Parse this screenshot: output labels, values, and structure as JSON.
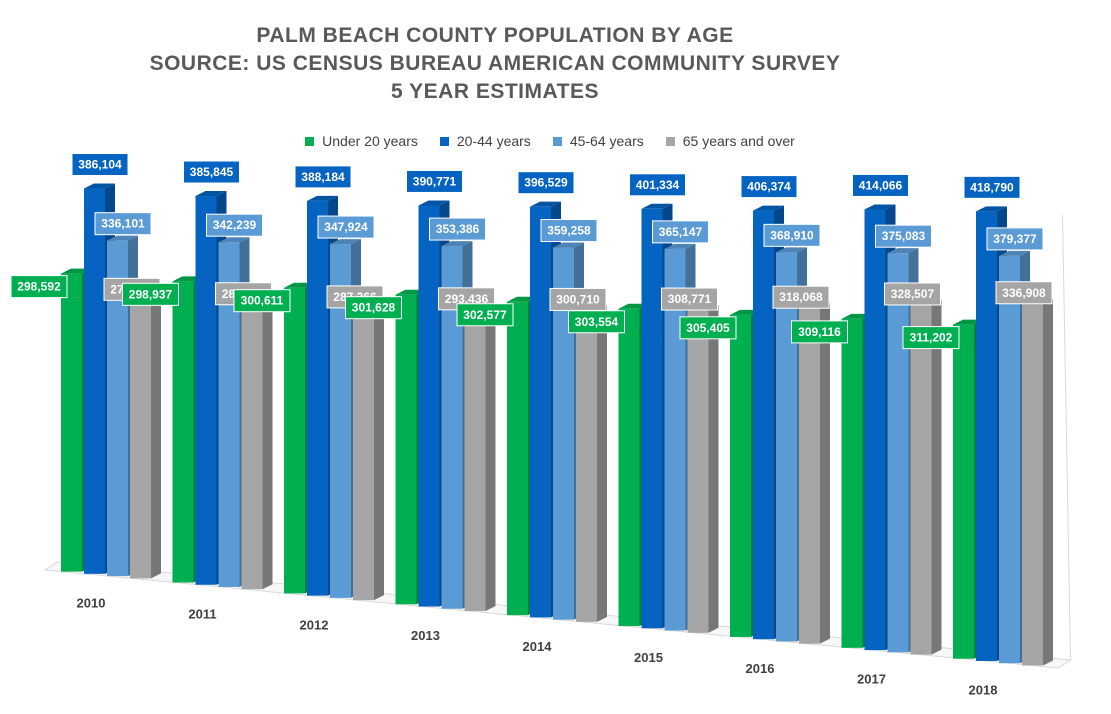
{
  "title": {
    "line1": "PALM BEACH COUNTY POPULATION BY AGE",
    "line2": "SOURCE: US CENSUS BUREAU AMERICAN COMMUNITY SURVEY",
    "line3": "5 YEAR ESTIMATES"
  },
  "colors": {
    "under20": "#00B050",
    "age20_44": "#0563C1",
    "age45_64": "#5B9BD5",
    "age65plus": "#A5A5A5",
    "background": "#FFFFFF"
  },
  "chart_data": {
    "type": "bar",
    "style": "3d-clustered-column",
    "title": "PALM BEACH COUNTY POPULATION BY AGE SOURCE: US CENSUS BUREAU AMERICAN COMMUNITY SURVEY 5 YEAR ESTIMATES",
    "categories": [
      "2010",
      "2011",
      "2012",
      "2013",
      "2014",
      "2015",
      "2016",
      "2017",
      "2018"
    ],
    "series": [
      {
        "name": "Under 20 years",
        "values": [
          298592,
          298937,
          300611,
          301628,
          302577,
          303554,
          305405,
          309116,
          311202
        ]
      },
      {
        "name": "20-44 years",
        "values": [
          386104,
          385845,
          388184,
          390771,
          396529,
          401334,
          406374,
          414066,
          418790
        ]
      },
      {
        "name": "45-64 years",
        "values": [
          336101,
          342239,
          347924,
          353386,
          359258,
          365147,
          368910,
          375083,
          379377
        ]
      },
      {
        "name": "65 years and over",
        "values": [
          278559,
          282380,
          287366,
          293436,
          300710,
          308771,
          318068,
          328507,
          336908
        ]
      }
    ],
    "data_labels": {
      "Under 20 years": [
        "298,592",
        "298,937",
        "300,611",
        "301,628",
        "302,577",
        "303,554",
        "305,405",
        "309,116",
        "311,202"
      ],
      "20-44 years": [
        "386,104",
        "385,845",
        "388,184",
        "390,771",
        "396,529",
        "401,334",
        "406,374",
        "414,066",
        "418,790"
      ],
      "45-64 years": [
        "336,101",
        "342,239",
        "347,924",
        "353,386",
        "359,258",
        "365,147",
        "368,910",
        "375,083",
        "379,377"
      ],
      "65 years and over": [
        "278,559",
        "282,380",
        "287,366",
        "293,436",
        "300,710",
        "308,771",
        "318,068",
        "328,507",
        "336,908"
      ]
    },
    "legend": "top",
    "grid": false
  }
}
